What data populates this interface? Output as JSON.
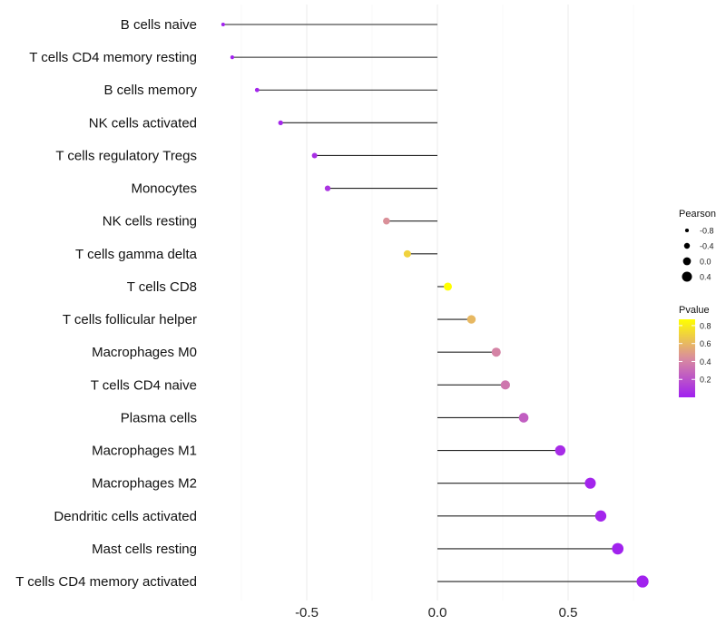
{
  "chart_data": {
    "type": "lollipop",
    "title": "",
    "xlabel": "",
    "ylabel": "",
    "xlim": [
      -0.9,
      1.0
    ],
    "xticks": [
      -0.5,
      0.0,
      0.5
    ],
    "xtick_labels": [
      "-0.5",
      "0.0",
      "0.5"
    ],
    "grid": true,
    "categories": [
      "B cells naive",
      "T cells CD4 memory resting",
      "B cells memory",
      "NK cells activated",
      "T cells regulatory  Tregs",
      "Monocytes",
      "NK cells resting",
      "T cells gamma delta",
      "T cells CD8",
      "T cells follicular helper",
      "Macrophages M0",
      "T cells CD4 naive",
      "Plasma cells",
      "Macrophages M1",
      "Macrophages M2",
      "Dendritic cells activated",
      "Mast cells resting",
      "T cells CD4 memory activated"
    ],
    "pearson": [
      -0.82,
      -0.785,
      -0.69,
      -0.6,
      -0.47,
      -0.42,
      -0.195,
      -0.115,
      0.04,
      0.13,
      0.225,
      0.26,
      0.33,
      0.47,
      0.585,
      0.625,
      0.69,
      0.785
    ],
    "pvalue": [
      0.01,
      0.01,
      0.02,
      0.03,
      0.06,
      0.08,
      0.45,
      0.7,
      0.87,
      0.6,
      0.4,
      0.35,
      0.25,
      0.05,
      0.02,
      0.02,
      0.01,
      0.01
    ],
    "legend": {
      "size_title": "Pearson",
      "size_values": [
        -0.8,
        -0.4,
        0.0,
        0.4
      ],
      "size_labels": [
        "-0.8",
        "-0.4",
        "0.0",
        "0.4"
      ],
      "color_title": "Pvalue",
      "color_ticks": [
        0.8,
        0.6,
        0.4,
        0.2
      ],
      "color_labels": [
        "0.8",
        "0.6",
        "0.4",
        "0.2"
      ],
      "color_range": [
        0.0,
        0.87
      ],
      "placement": "right"
    },
    "colors": {
      "low": "#a020f0",
      "mid": "#d98c9e",
      "high": "#ffff00"
    }
  }
}
